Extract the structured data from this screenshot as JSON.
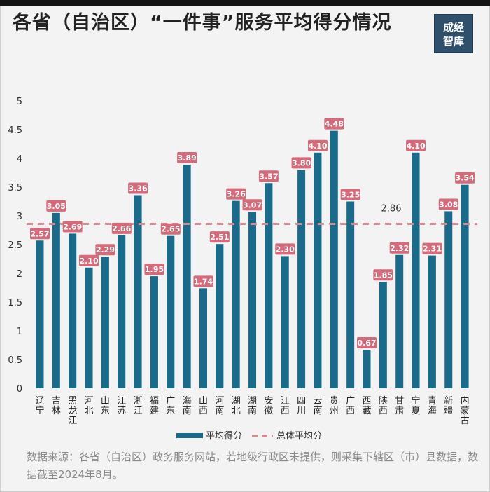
{
  "title": "各省（自治区）“一件事”服务平均得分情况",
  "logo": {
    "line1": "成经",
    "line2": "智库"
  },
  "colors": {
    "bar": "#1a6b8a",
    "avg_line": "#d88a92",
    "label_bg": "#d46a7a"
  },
  "chart_data": {
    "type": "bar",
    "categories": [
      "辽宁",
      "吉林",
      "黑龙江",
      "河北",
      "山东",
      "江苏",
      "浙江",
      "福建",
      "广东",
      "海南",
      "山西",
      "河南",
      "湖北",
      "湖南",
      "安徽",
      "江西",
      "四川",
      "云南",
      "贵州",
      "广西",
      "西藏",
      "陕西",
      "甘肃",
      "宁夏",
      "青海",
      "新疆",
      "内蒙古"
    ],
    "series": [
      {
        "name": "平均得分",
        "values": [
          2.57,
          3.05,
          2.69,
          2.1,
          2.29,
          2.66,
          3.36,
          1.95,
          2.65,
          3.89,
          1.74,
          2.51,
          3.26,
          3.07,
          3.57,
          2.3,
          3.8,
          4.1,
          4.48,
          3.25,
          0.67,
          1.85,
          2.32,
          4.1,
          2.31,
          3.08,
          3.54
        ]
      },
      {
        "name": "总体平均分",
        "value": 2.86,
        "style": "dashed"
      }
    ],
    "value_labels": [
      "2.57",
      "3.05",
      "2.69",
      "2.10",
      "2.29",
      "2.66",
      "3.36",
      "1.95",
      "2.65",
      "3.89",
      "1.74",
      "2.51",
      "3.26",
      "3.07",
      "3.57",
      "2.30",
      "3.80",
      "4.10",
      "4.48",
      "3.25",
      "0.67",
      "1.85",
      "2.32",
      "4.10",
      "2.31",
      "3.08",
      "3.54"
    ],
    "avg_label": "2.86",
    "yticks": [
      "0",
      "0.5",
      "1",
      "1.5",
      "2",
      "2.5",
      "3",
      "3.5",
      "4",
      "4.5",
      "5"
    ],
    "ylim": [
      0,
      5
    ],
    "grid": false,
    "legend": "bottom"
  },
  "source": "数据来源：各省（自治区）政务服务网站，若地级行政区未提供，则采集下辖区（市）县数据，数据截至2024年8月。"
}
